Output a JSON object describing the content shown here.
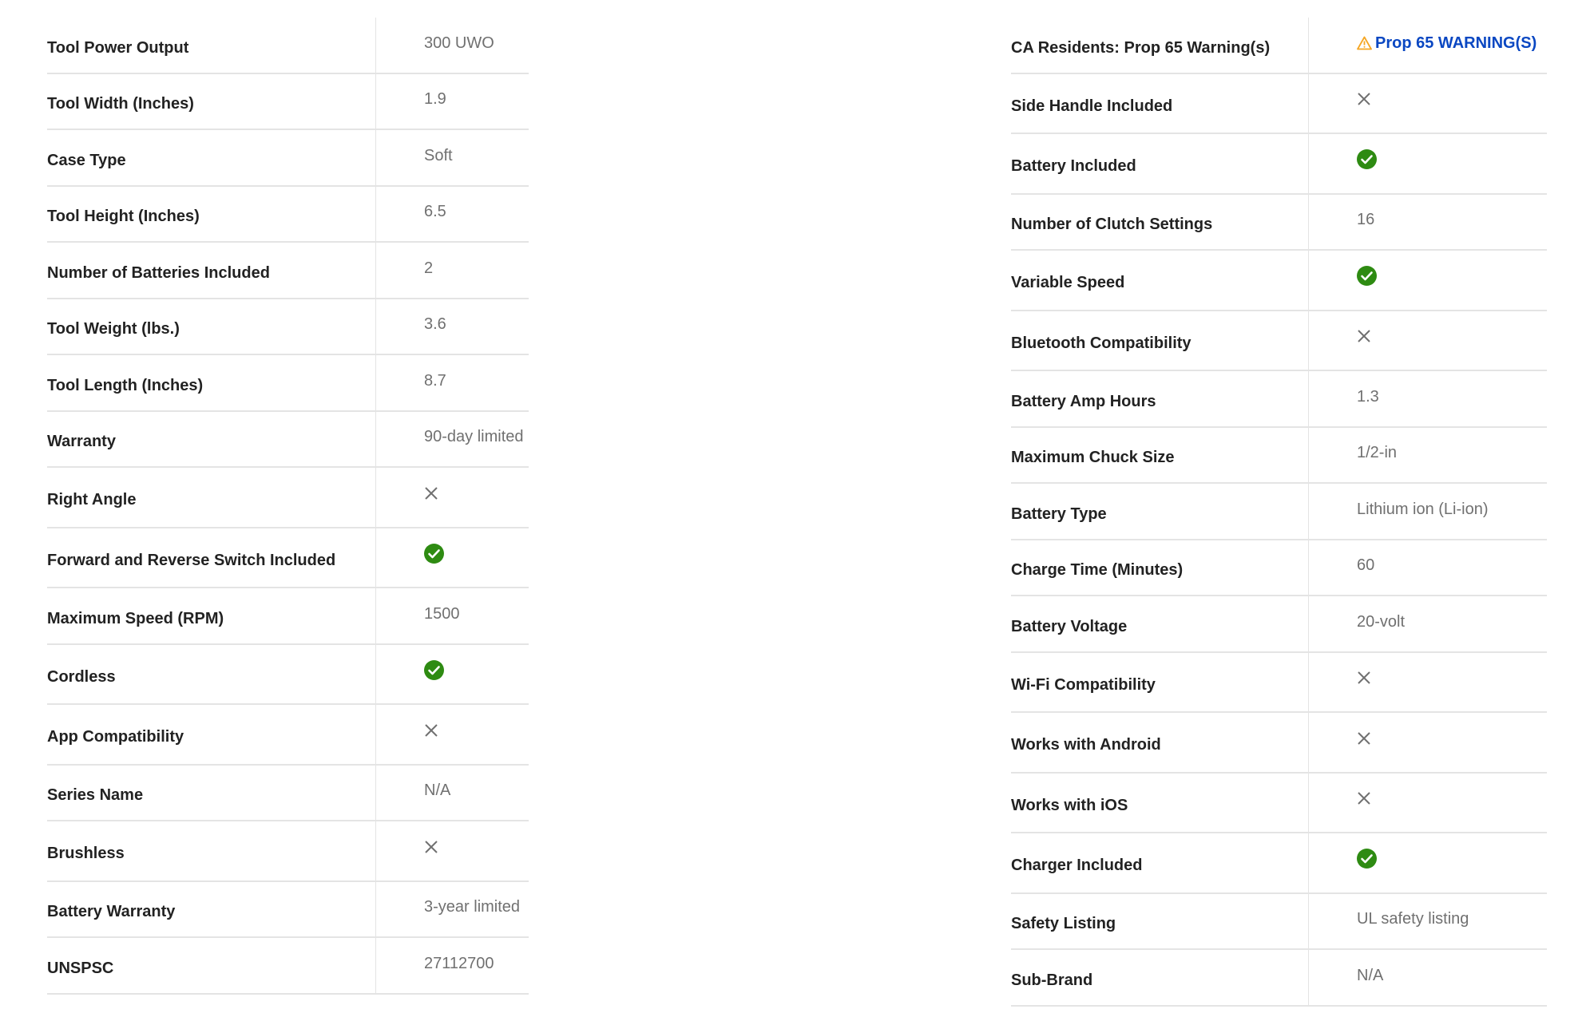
{
  "colors": {
    "check": "#2e8b12",
    "x": "#707070",
    "link": "#0a47c2",
    "warning": "#f5a623"
  },
  "left_specs": [
    {
      "label": "Tool Power Output",
      "value": "300 UWO"
    },
    {
      "label": "Tool Width (Inches)",
      "value": "1.9"
    },
    {
      "label": "Case Type",
      "value": "Soft"
    },
    {
      "label": "Tool Height (Inches)",
      "value": "6.5"
    },
    {
      "label": "Number of Batteries Included",
      "value": "2"
    },
    {
      "label": "Tool Weight (lbs.)",
      "value": "3.6"
    },
    {
      "label": "Tool Length (Inches)",
      "value": "8.7"
    },
    {
      "label": "Warranty",
      "value": "90-day limited"
    },
    {
      "label": "Right Angle",
      "icon": "x-icon"
    },
    {
      "label": "Forward and Reverse Switch Included",
      "icon": "check-icon"
    },
    {
      "label": "Maximum Speed (RPM)",
      "value": "1500"
    },
    {
      "label": "Cordless",
      "icon": "check-icon"
    },
    {
      "label": "App Compatibility",
      "icon": "x-icon"
    },
    {
      "label": "Series Name",
      "value": "N/A"
    },
    {
      "label": "Brushless",
      "icon": "x-icon"
    },
    {
      "label": "Battery Warranty",
      "value": "3-year limited"
    },
    {
      "label": "UNSPSC",
      "value": "27112700"
    }
  ],
  "right_specs": [
    {
      "label": "CA Residents: Prop 65 Warning(s)",
      "link": "Prop 65 WARNING(S)",
      "icon": "warning-icon"
    },
    {
      "label": "Side Handle Included",
      "icon": "x-icon"
    },
    {
      "label": "Battery Included",
      "icon": "check-icon"
    },
    {
      "label": "Number of Clutch Settings",
      "value": "16"
    },
    {
      "label": "Variable Speed",
      "icon": "check-icon"
    },
    {
      "label": "Bluetooth Compatibility",
      "icon": "x-icon"
    },
    {
      "label": "Battery Amp Hours",
      "value": "1.3"
    },
    {
      "label": "Maximum Chuck Size",
      "value": "1/2-in"
    },
    {
      "label": "Battery Type",
      "value": "Lithium ion (Li-ion)"
    },
    {
      "label": "Charge Time (Minutes)",
      "value": "60"
    },
    {
      "label": "Battery Voltage",
      "value": "20-volt"
    },
    {
      "label": "Wi-Fi Compatibility",
      "icon": "x-icon"
    },
    {
      "label": "Works with Android",
      "icon": "x-icon"
    },
    {
      "label": "Works with iOS",
      "icon": "x-icon"
    },
    {
      "label": "Charger Included",
      "icon": "check-icon"
    },
    {
      "label": "Safety Listing",
      "value": "UL safety listing"
    },
    {
      "label": "Sub-Brand",
      "value": "N/A"
    }
  ]
}
